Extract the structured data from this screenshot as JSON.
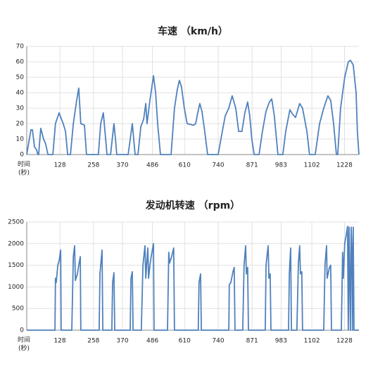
{
  "chart_data": [
    {
      "type": "line",
      "title": "车速 （km/h）",
      "xlabel": [
        "时间",
        "(秒)"
      ],
      "color": "#4f81bd",
      "grid": true,
      "x": [
        0,
        16,
        22,
        30,
        38,
        43,
        46,
        54,
        65,
        73,
        82,
        101,
        111,
        125,
        136,
        141,
        150,
        158,
        169,
        180,
        193,
        201,
        209,
        223,
        231,
        277,
        286,
        296,
        305,
        310,
        324,
        337,
        343,
        348,
        392,
        408,
        419,
        430,
        441,
        452,
        460,
        465,
        476,
        490,
        498,
        506,
        517,
        558,
        571,
        582,
        590,
        598,
        609,
        620,
        645,
        653,
        661,
        669,
        677,
        688,
        699,
        740,
        756,
        767,
        781,
        794,
        808,
        819,
        832,
        843,
        854,
        862,
        870,
        879,
        898,
        911,
        925,
        938,
        947,
        957,
        971,
        990,
        1001,
        1017,
        1028,
        1039,
        1055,
        1066,
        1083,
        1093,
        1115,
        1132,
        1148,
        1164,
        1175,
        1186,
        1197,
        1202,
        1213,
        1229,
        1243,
        1251,
        1262,
        1273,
        1278,
        1284
      ],
      "values": [
        0,
        16,
        16,
        5,
        3,
        0,
        0,
        17,
        10,
        7,
        0,
        0,
        20,
        27,
        22,
        20,
        15,
        0,
        0,
        20,
        35,
        43,
        20,
        19,
        0,
        0,
        20,
        27,
        10,
        0,
        0,
        20,
        10,
        0,
        0,
        20,
        0,
        0,
        18,
        23,
        33,
        20,
        35,
        51,
        40,
        20,
        0,
        0,
        30,
        42,
        48,
        44,
        30,
        20,
        19,
        20,
        27,
        33,
        28,
        15,
        0,
        0,
        15,
        25,
        30,
        38,
        30,
        15,
        15,
        27,
        34,
        25,
        10,
        0,
        0,
        15,
        28,
        34,
        36,
        25,
        0,
        0,
        15,
        29,
        26,
        24,
        33,
        30,
        15,
        0,
        0,
        20,
        30,
        38,
        35,
        20,
        0,
        0,
        30,
        50,
        60,
        61,
        58,
        40,
        15,
        0
      ],
      "xlim": [
        0,
        1284
      ],
      "xticks": [
        128,
        258,
        370,
        486,
        610,
        740,
        871,
        983,
        1102,
        1228
      ],
      "ylim": [
        0,
        70
      ],
      "yticks": [
        0,
        10,
        20,
        30,
        40,
        50,
        60,
        70
      ]
    },
    {
      "type": "line",
      "title": "发动机转速 （rpm）",
      "xlabel": [
        "时间",
        "(秒)"
      ],
      "color": "#4f81bd",
      "grid": true,
      "x": [
        0,
        109,
        111,
        114,
        120,
        125,
        131,
        133,
        174,
        180,
        185,
        188,
        196,
        201,
        207,
        209,
        280,
        283,
        291,
        294,
        329,
        332,
        337,
        340,
        400,
        403,
        408,
        411,
        443,
        449,
        457,
        460,
        468,
        471,
        476,
        481,
        490,
        492,
        544,
        549,
        552,
        560,
        568,
        571,
        663,
        666,
        672,
        675,
        781,
        783,
        789,
        797,
        802,
        805,
        835,
        840,
        846,
        849,
        854,
        857,
        922,
        925,
        933,
        936,
        941,
        944,
        1012,
        1015,
        1020,
        1023,
        1044,
        1050,
        1055,
        1058,
        1063,
        1066,
        1148,
        1153,
        1159,
        1161,
        1170,
        1175,
        1178,
        1216,
        1221,
        1224,
        1229,
        1235,
        1240,
        1243,
        1246,
        1251,
        1254,
        1257,
        1259,
        1262,
        1265,
        1284
      ],
      "values": [
        0,
        0,
        1200,
        1100,
        1500,
        1600,
        1850,
        0,
        0,
        1700,
        1950,
        1150,
        1300,
        1500,
        1700,
        0,
        0,
        1300,
        1850,
        0,
        0,
        1100,
        1330,
        0,
        0,
        1200,
        1350,
        0,
        0,
        1500,
        1950,
        1200,
        1900,
        1200,
        1500,
        1700,
        2000,
        0,
        0,
        1800,
        1550,
        1700,
        1900,
        0,
        0,
        1100,
        1300,
        0,
        0,
        1050,
        1100,
        1350,
        1450,
        0,
        0,
        1500,
        1950,
        1300,
        1450,
        0,
        0,
        1500,
        1950,
        1200,
        1300,
        0,
        0,
        1300,
        1900,
        0,
        0,
        1550,
        1950,
        1300,
        1350,
        0,
        0,
        1500,
        1950,
        1200,
        1450,
        1500,
        0,
        0,
        1800,
        1200,
        2000,
        2200,
        2400,
        0,
        2380,
        0,
        2380,
        1800,
        0,
        2380,
        0,
        0
      ],
      "xlim": [
        0,
        1284
      ],
      "xticks": [
        128,
        258,
        370,
        486,
        610,
        740,
        871,
        983,
        1102,
        1228
      ],
      "ylim": [
        0,
        2500
      ],
      "yticks": [
        0,
        500,
        1000,
        1500,
        2000,
        2500
      ]
    }
  ]
}
